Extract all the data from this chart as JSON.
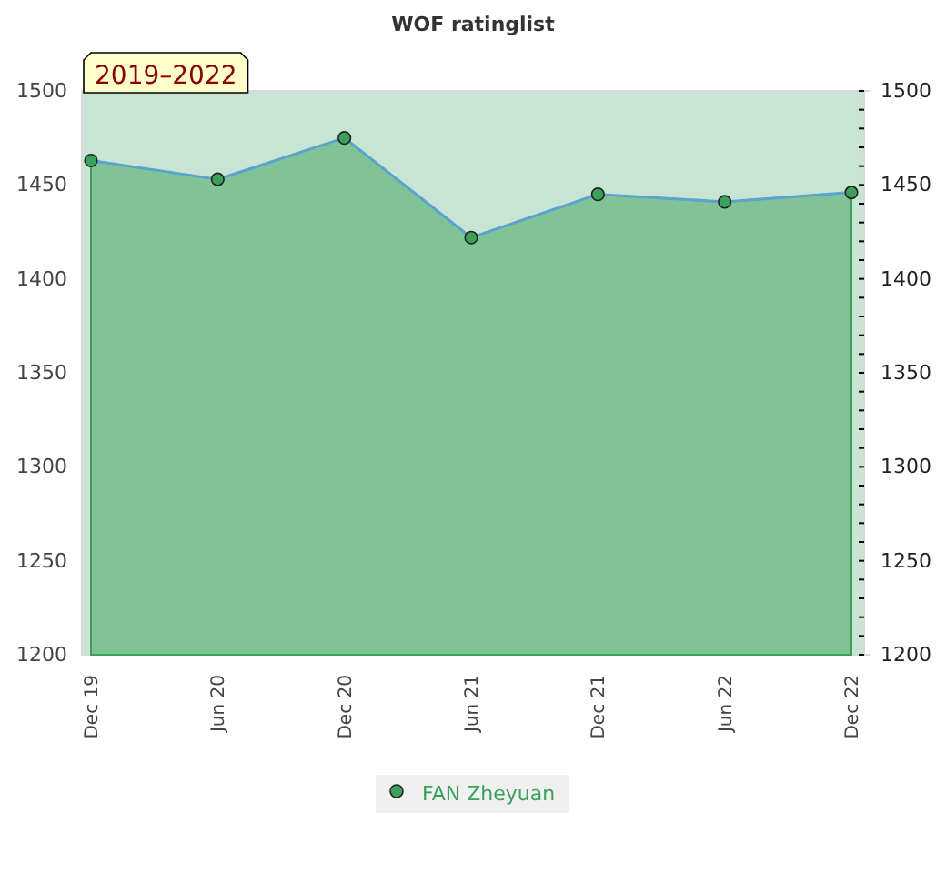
{
  "chart_data": {
    "type": "area",
    "title": "WOF ratinglist",
    "annotations": [
      "2019–2022"
    ],
    "categories": [
      "Dec 19",
      "Jun 20",
      "Dec 20",
      "Jun 21",
      "Dec 21",
      "Jun 22",
      "Dec 22"
    ],
    "series": [
      {
        "name": "FAN Zheyuan",
        "color": "#3aa05a",
        "values": [
          1463,
          1453,
          1475,
          1422,
          1445,
          1441,
          1446
        ]
      }
    ],
    "ylim": [
      1200,
      1500
    ],
    "yticks": [
      1200,
      1250,
      1300,
      1350,
      1400,
      1450,
      1500
    ],
    "y2lim": [
      1200,
      1500
    ],
    "y2ticks": [
      1200,
      {
        "value": 1210,
        "label": null
      },
      {
        "value": 1220,
        "label": null
      },
      {
        "value": 1230,
        "label": null
      },
      {
        "value": 1240,
        "label": null
      },
      1250,
      {
        "value": 1260,
        "label": null
      },
      {
        "value": 1270,
        "label": null
      },
      {
        "value": 1280,
        "label": null
      },
      {
        "value": 1290,
        "label": null
      },
      1300,
      {
        "value": 1310,
        "label": null
      },
      {
        "value": 1320,
        "label": null
      },
      {
        "value": 1330,
        "label": null
      },
      {
        "value": 1340,
        "label": null
      },
      1350,
      {
        "value": 1360,
        "label": null
      },
      {
        "value": 1370,
        "label": null
      },
      {
        "value": 1380,
        "label": null
      },
      {
        "value": 1390,
        "label": null
      },
      1400,
      {
        "value": 1410,
        "label": null
      },
      {
        "value": 1420,
        "label": null
      },
      {
        "value": 1430,
        "label": null
      },
      {
        "value": 1440,
        "label": null
      },
      1450,
      {
        "value": 1460,
        "label": null
      },
      {
        "value": 1470,
        "label": null
      },
      {
        "value": 1480,
        "label": null
      },
      {
        "value": 1490,
        "label": null
      },
      1500
    ],
    "marker": "circle",
    "legend": "bottom",
    "grid": false
  }
}
